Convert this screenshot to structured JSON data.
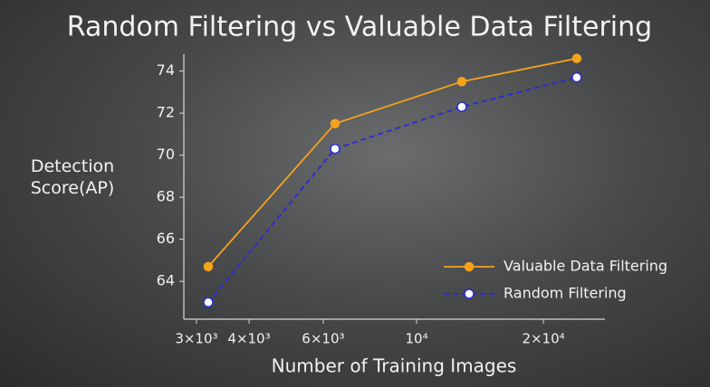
{
  "chart_data": {
    "type": "line",
    "title": "Random Filtering vs Valuable Data Filtering",
    "x_label": "Number of Training Images",
    "y_label": "Detection Score(AP)",
    "x": [
      3200,
      6400,
      12800,
      24000
    ],
    "xscale": "log",
    "xlim": [
      2800,
      28000
    ],
    "xticks": [
      {
        "value": 3000,
        "label": "3×10³"
      },
      {
        "value": 4000,
        "label": "4×10³"
      },
      {
        "value": 6000,
        "label": "6×10³"
      },
      {
        "value": 10000,
        "label": "10⁴"
      },
      {
        "value": 20000,
        "label": "2×10⁴"
      }
    ],
    "ylim": [
      62.2,
      74.8
    ],
    "yticks": [
      64,
      66,
      68,
      70,
      72,
      74
    ],
    "grid": false,
    "legend": "lower right",
    "series": [
      {
        "name": "Valuable Data Filtering",
        "color": "#f5a21c",
        "values": [
          64.7,
          71.5,
          73.5,
          74.6
        ]
      },
      {
        "name": "Random Filtering",
        "color": "#2a2ad8",
        "values": [
          63.0,
          70.3,
          72.3,
          73.7
        ]
      }
    ]
  }
}
